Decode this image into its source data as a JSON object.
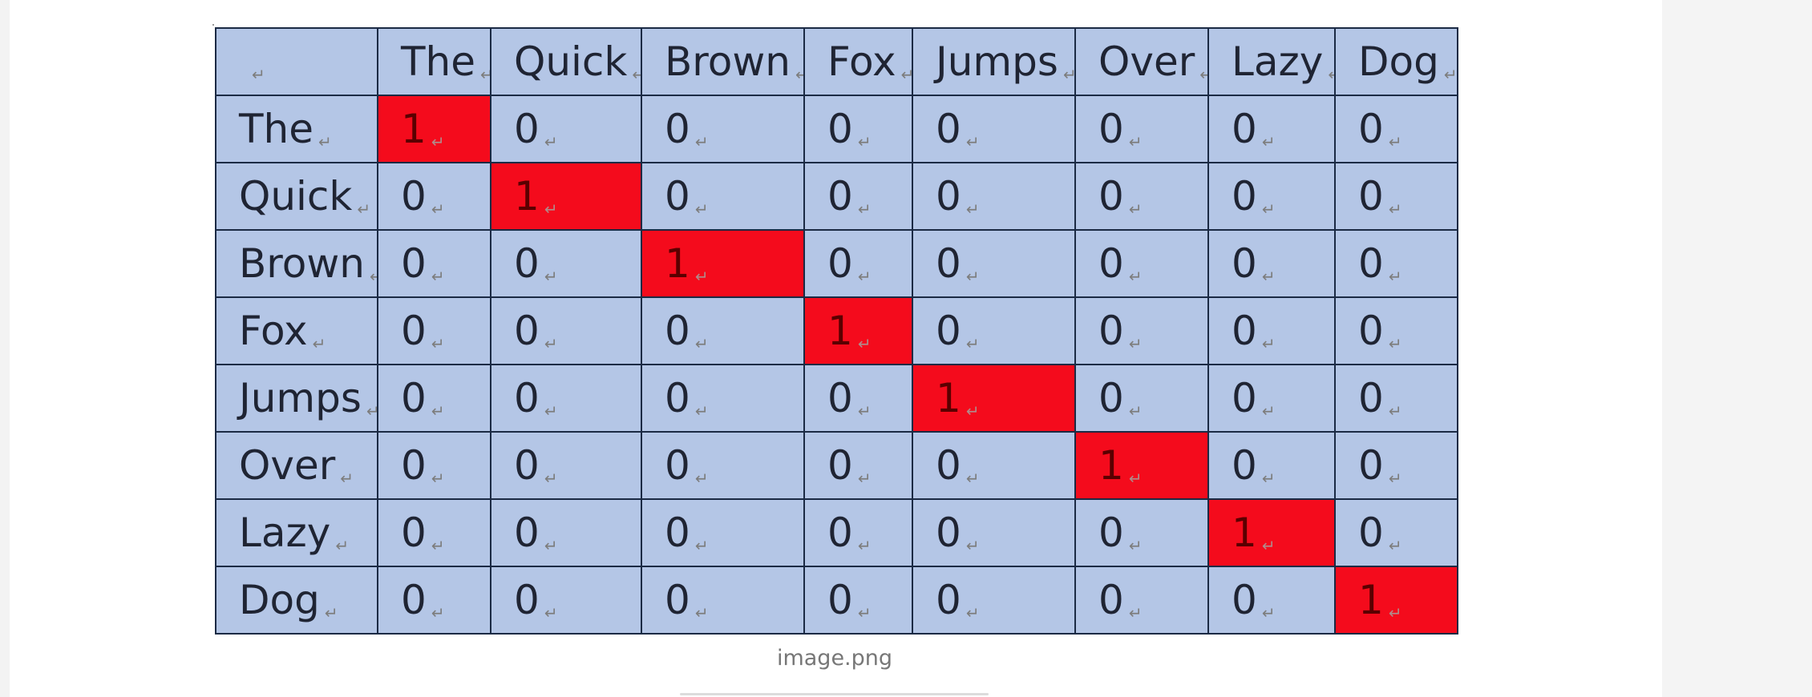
{
  "image": {
    "caption": "image.png",
    "cell_mark": "↵"
  },
  "matrix": {
    "header": [
      "",
      "The",
      "Quick",
      "Brown",
      "Fox",
      "Jumps",
      "Over",
      "Lazy",
      "Dog"
    ],
    "rows": [
      {
        "label": "The",
        "cells": [
          "1",
          "0",
          "0",
          "0",
          "0",
          "0",
          "0",
          "0"
        ]
      },
      {
        "label": "Quick",
        "cells": [
          "0",
          "1",
          "0",
          "0",
          "0",
          "0",
          "0",
          "0"
        ]
      },
      {
        "label": "Brown",
        "cells": [
          "0",
          "0",
          "1",
          "0",
          "0",
          "0",
          "0",
          "0"
        ]
      },
      {
        "label": "Fox",
        "cells": [
          "0",
          "0",
          "0",
          "1",
          "0",
          "0",
          "0",
          "0"
        ]
      },
      {
        "label": "Jumps",
        "cells": [
          "0",
          "0",
          "0",
          "0",
          "1",
          "0",
          "0",
          "0"
        ]
      },
      {
        "label": "Over",
        "cells": [
          "0",
          "0",
          "0",
          "0",
          "0",
          "1",
          "0",
          "0"
        ]
      },
      {
        "label": "Lazy",
        "cells": [
          "0",
          "0",
          "0",
          "0",
          "0",
          "0",
          "1",
          "0"
        ]
      },
      {
        "label": "Dog",
        "cells": [
          "0",
          "0",
          "0",
          "0",
          "0",
          "0",
          "0",
          "1"
        ]
      }
    ]
  },
  "colors": {
    "cell_background": "#b4c6e6",
    "highlight": "#f40b1c",
    "grid_line": "#1b2a44"
  }
}
